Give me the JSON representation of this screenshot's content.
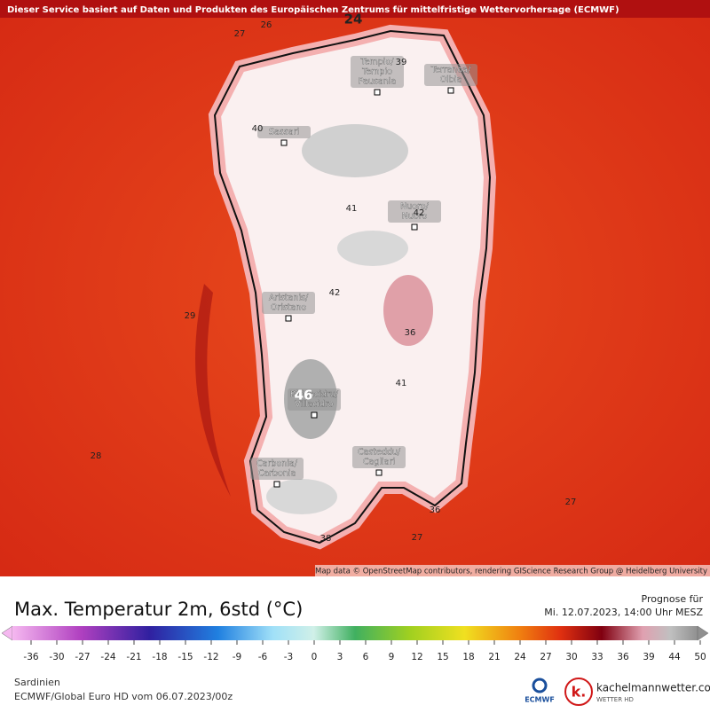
{
  "header": {
    "notice": "Dieser Service basiert auf Daten und Produkten des Europäischen Zentrums für mittelfristige Wettervorhersage (ECMWF)"
  },
  "map": {
    "cities": [
      {
        "lines": [
          "Tempio/",
          "Tempio",
          "Pausania"
        ]
      },
      {
        "lines": [
          "Terranoa/",
          "Olbia"
        ]
      },
      {
        "lines": [
          "Sassari"
        ]
      },
      {
        "lines": [
          "Nuoro/",
          "Nuoro"
        ]
      },
      {
        "lines": [
          "Aristanis/",
          "Oristano"
        ]
      },
      {
        "lines": [
          "Biddacidru/",
          "Villacidro"
        ]
      },
      {
        "lines": [
          "Casteddu/",
          "Cagliari"
        ]
      },
      {
        "lines": [
          "Carbonia/",
          "Carbonia"
        ]
      }
    ],
    "contour_labels": [
      24,
      26,
      27,
      39,
      40,
      41,
      42,
      42,
      29,
      36,
      41,
      46,
      28,
      27,
      27,
      38,
      36
    ],
    "attribution": "Map data © OpenStreetMap contributors, rendering GIScience Research Group @ Heidelberg University"
  },
  "footer": {
    "title": "Max. Temperatur 2m, 6std (°C)",
    "forecast_label": "Prognose für",
    "forecast_time": "Mi. 12.07.2023, 14:00 Uhr MESZ",
    "colorbar_ticks": [
      -36,
      -30,
      -27,
      -24,
      -21,
      -18,
      -15,
      -12,
      -9,
      -6,
      -3,
      0,
      3,
      6,
      9,
      12,
      15,
      18,
      21,
      24,
      27,
      30,
      33,
      36,
      39,
      44,
      50
    ],
    "region": "Sardinien",
    "model": "ECMWF/Global Euro HD vom  06.07.2023/00z",
    "ecmwf_logo": "ECMWF",
    "site": "kachelmannwetter.com",
    "site_sub": "WETTER HD",
    "site_logo": "k."
  }
}
